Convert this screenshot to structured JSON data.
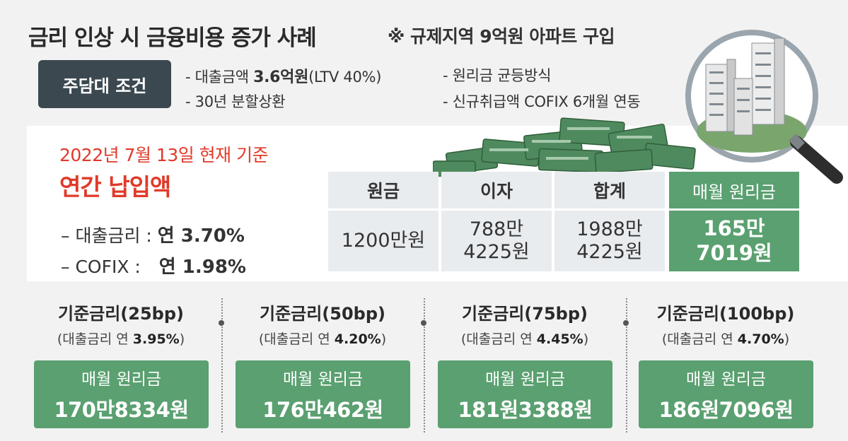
{
  "header": {
    "title": "금리 인상 시 금융비용 증가 사례",
    "subtitle": "※ 규제지역 9억원 아파트 구입"
  },
  "conditions": {
    "badge": "주담대 조건",
    "items": [
      {
        "prefix": "- 대출금액 ",
        "bold": "3.6억원",
        "suffix": "(LTV 40%)"
      },
      {
        "prefix": "- 30년 분할상환",
        "bold": "",
        "suffix": ""
      },
      {
        "prefix": "- 원리금 균등방식",
        "bold": "",
        "suffix": ""
      },
      {
        "prefix": "- 신규취급액 COFIX 6개월 연동",
        "bold": "",
        "suffix": ""
      }
    ]
  },
  "current": {
    "basis_date": "2022년 7월 13일 현재 기준",
    "heading": "연간 납입액",
    "loan_rate_label": "– 대출금리 :",
    "loan_rate_value": "연 3.70%",
    "cofix_label": "– COFIX :",
    "cofix_value": "연 1.98%"
  },
  "table": {
    "headers": [
      "원금",
      "이자",
      "합계",
      "매월 원리금"
    ],
    "values": [
      [
        "1200만원"
      ],
      [
        "788만",
        "4225원"
      ],
      [
        "1988만",
        "4225원"
      ],
      [
        "165만",
        "7019원"
      ]
    ]
  },
  "scenarios": [
    {
      "title": "기준금리(25bp)",
      "sub_prefix": "(대출금리 연 ",
      "sub_bold": "3.95%",
      "sub_suffix": ")",
      "label": "매월 원리금",
      "amount": "170만8334원"
    },
    {
      "title": "기준금리(50bp)",
      "sub_prefix": "(대출금리 연 ",
      "sub_bold": "4.20%",
      "sub_suffix": ")",
      "label": "매월 원리금",
      "amount": "176만462원"
    },
    {
      "title": "기준금리(75bp)",
      "sub_prefix": "(대출금리 연 ",
      "sub_bold": "4.45%",
      "sub_suffix": ")",
      "label": "매월 원리금",
      "amount": "181원3388원"
    },
    {
      "title": "기준금리(100bp)",
      "sub_prefix": "(대출금리 연 ",
      "sub_bold": "4.70%",
      "sub_suffix": ")",
      "label": "매월 원리금",
      "amount": "186원7096원"
    }
  ],
  "colors": {
    "accent_green": "#5aa070",
    "accent_red": "#e03a2a",
    "badge_dark": "#3c4850"
  },
  "icons": {
    "money": "cash-bundles-illustration",
    "magnifier": "magnifying-glass-apartments-illustration"
  }
}
